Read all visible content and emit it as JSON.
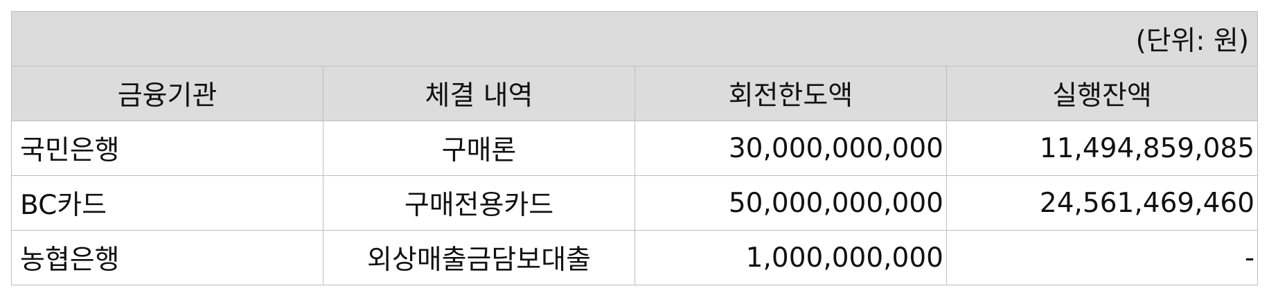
{
  "table": {
    "unit_note": "(단위: 원)",
    "headers": [
      "금융기관",
      "체결 내역",
      "회전한도액",
      "실행잔액"
    ],
    "rows": [
      {
        "institution": "국민은행",
        "contract": "구매론",
        "revolving_limit": "30,000,000,000",
        "balance": "11,494,859,085"
      },
      {
        "institution": "BC카드",
        "contract": "구매전용카드",
        "revolving_limit": "50,000,000,000",
        "balance": "24,561,469,460"
      },
      {
        "institution": "농협은행",
        "contract": "외상매출금담보대출",
        "revolving_limit": "1,000,000,000",
        "balance": "-"
      }
    ]
  }
}
